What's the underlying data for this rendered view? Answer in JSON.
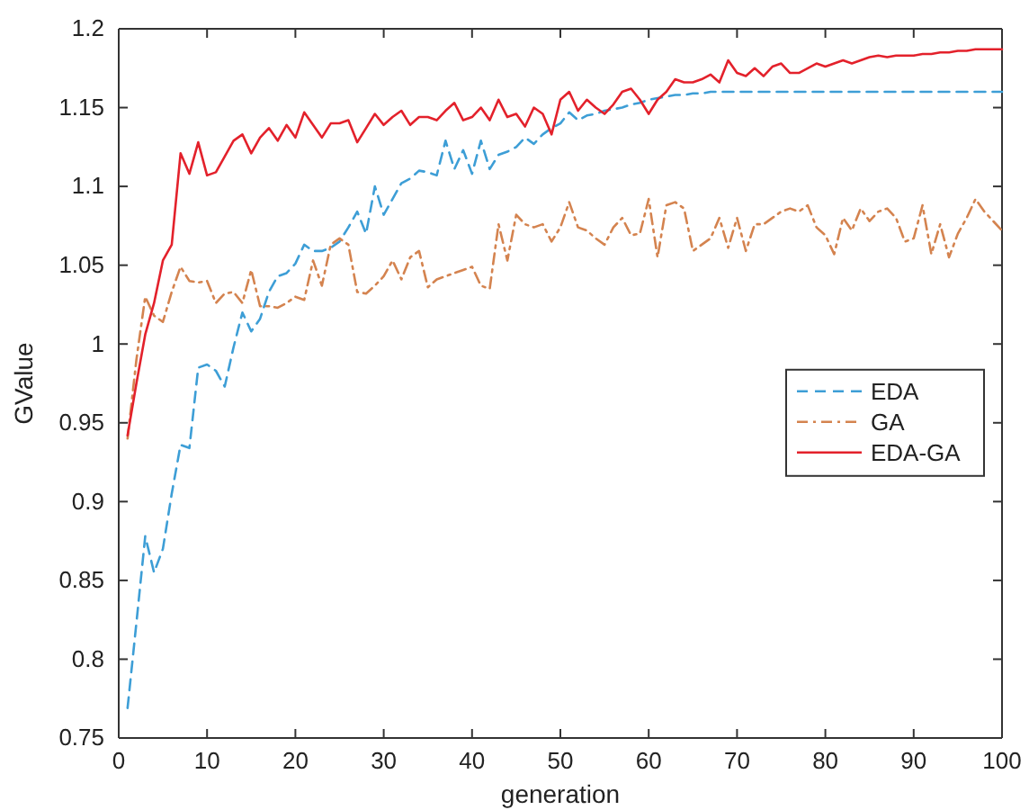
{
  "chart_data": {
    "type": "line",
    "xlabel": "generation",
    "ylabel": "GValue",
    "xlim": [
      0,
      100
    ],
    "xticks": [
      0,
      10,
      20,
      30,
      40,
      50,
      60,
      70,
      80,
      90,
      100
    ],
    "ylim": [
      0.75,
      1.2
    ],
    "yticks": [
      0.75,
      0.8,
      0.85,
      0.9,
      0.95,
      1,
      1.05,
      1.1,
      1.15,
      1.2
    ],
    "grid": false,
    "legend": "right",
    "marker": "none",
    "x": [
      1,
      2,
      3,
      4,
      5,
      6,
      7,
      8,
      9,
      10,
      11,
      12,
      13,
      14,
      15,
      16,
      17,
      18,
      19,
      20,
      21,
      22,
      23,
      24,
      25,
      26,
      27,
      28,
      29,
      30,
      31,
      32,
      33,
      34,
      35,
      36,
      37,
      38,
      39,
      40,
      41,
      42,
      43,
      44,
      45,
      46,
      47,
      48,
      49,
      50,
      51,
      52,
      53,
      54,
      55,
      56,
      57,
      58,
      59,
      60,
      61,
      62,
      63,
      64,
      65,
      66,
      67,
      68,
      69,
      70,
      71,
      72,
      73,
      74,
      75,
      76,
      77,
      78,
      79,
      80,
      81,
      82,
      83,
      84,
      85,
      86,
      87,
      88,
      89,
      90,
      91,
      92,
      93,
      94,
      95,
      96,
      97,
      98,
      99,
      100
    ],
    "series": [
      {
        "name": "EDA",
        "color": "#3d9ed6",
        "line_style": "dashed",
        "values": [
          0.769,
          0.823,
          0.878,
          0.855,
          0.87,
          0.905,
          0.936,
          0.934,
          0.985,
          0.987,
          0.983,
          0.973,
          0.998,
          1.02,
          1.008,
          1.016,
          1.033,
          1.043,
          1.045,
          1.051,
          1.063,
          1.059,
          1.059,
          1.061,
          1.065,
          1.074,
          1.084,
          1.07,
          1.1,
          1.082,
          1.092,
          1.102,
          1.105,
          1.11,
          1.109,
          1.107,
          1.129,
          1.111,
          1.123,
          1.108,
          1.129,
          1.111,
          1.12,
          1.122,
          1.125,
          1.131,
          1.127,
          1.133,
          1.137,
          1.14,
          1.147,
          1.142,
          1.145,
          1.146,
          1.148,
          1.149,
          1.15,
          1.152,
          1.153,
          1.155,
          1.156,
          1.157,
          1.158,
          1.158,
          1.159,
          1.159,
          1.16,
          1.16,
          1.16,
          1.16,
          1.16,
          1.16,
          1.16,
          1.16,
          1.16,
          1.16,
          1.16,
          1.16,
          1.16,
          1.16,
          1.16,
          1.16,
          1.16,
          1.16,
          1.16,
          1.16,
          1.16,
          1.16,
          1.16,
          1.16,
          1.16,
          1.16,
          1.16,
          1.16,
          1.16,
          1.16,
          1.16,
          1.16,
          1.16,
          1.16
        ]
      },
      {
        "name": "GA",
        "color": "#d4834f",
        "line_style": "dashdot",
        "values": [
          0.94,
          0.99,
          1.03,
          1.018,
          1.014,
          1.033,
          1.049,
          1.04,
          1.039,
          1.04,
          1.026,
          1.032,
          1.033,
          1.026,
          1.047,
          1.024,
          1.024,
          1.023,
          1.026,
          1.03,
          1.028,
          1.053,
          1.037,
          1.063,
          1.067,
          1.063,
          1.033,
          1.032,
          1.037,
          1.043,
          1.053,
          1.041,
          1.055,
          1.059,
          1.036,
          1.041,
          1.043,
          1.045,
          1.047,
          1.049,
          1.037,
          1.035,
          1.076,
          1.053,
          1.082,
          1.076,
          1.074,
          1.076,
          1.065,
          1.074,
          1.09,
          1.074,
          1.072,
          1.067,
          1.063,
          1.074,
          1.08,
          1.069,
          1.07,
          1.092,
          1.055,
          1.088,
          1.09,
          1.086,
          1.059,
          1.063,
          1.067,
          1.08,
          1.061,
          1.08,
          1.059,
          1.076,
          1.076,
          1.08,
          1.084,
          1.086,
          1.084,
          1.088,
          1.074,
          1.069,
          1.057,
          1.08,
          1.072,
          1.086,
          1.078,
          1.084,
          1.086,
          1.08,
          1.065,
          1.067,
          1.088,
          1.057,
          1.076,
          1.055,
          1.07,
          1.08,
          1.092,
          1.084,
          1.078,
          1.072
        ]
      },
      {
        "name": "EDA-GA",
        "color": "#e3212b",
        "line_style": "solid",
        "values": [
          0.942,
          0.975,
          1.006,
          1.026,
          1.053,
          1.063,
          1.121,
          1.108,
          1.128,
          1.107,
          1.109,
          1.119,
          1.129,
          1.133,
          1.121,
          1.131,
          1.137,
          1.129,
          1.139,
          1.131,
          1.147,
          1.139,
          1.131,
          1.14,
          1.14,
          1.142,
          1.128,
          1.137,
          1.146,
          1.139,
          1.144,
          1.148,
          1.139,
          1.144,
          1.144,
          1.142,
          1.148,
          1.153,
          1.142,
          1.144,
          1.15,
          1.142,
          1.155,
          1.144,
          1.146,
          1.138,
          1.15,
          1.146,
          1.133,
          1.155,
          1.16,
          1.148,
          1.155,
          1.15,
          1.146,
          1.152,
          1.16,
          1.162,
          1.155,
          1.146,
          1.155,
          1.16,
          1.168,
          1.166,
          1.166,
          1.168,
          1.171,
          1.166,
          1.18,
          1.172,
          1.17,
          1.175,
          1.17,
          1.176,
          1.178,
          1.172,
          1.172,
          1.175,
          1.178,
          1.176,
          1.178,
          1.18,
          1.178,
          1.18,
          1.182,
          1.183,
          1.182,
          1.183,
          1.183,
          1.183,
          1.184,
          1.184,
          1.185,
          1.185,
          1.186,
          1.186,
          1.187,
          1.187,
          1.187,
          1.187
        ]
      }
    ]
  }
}
